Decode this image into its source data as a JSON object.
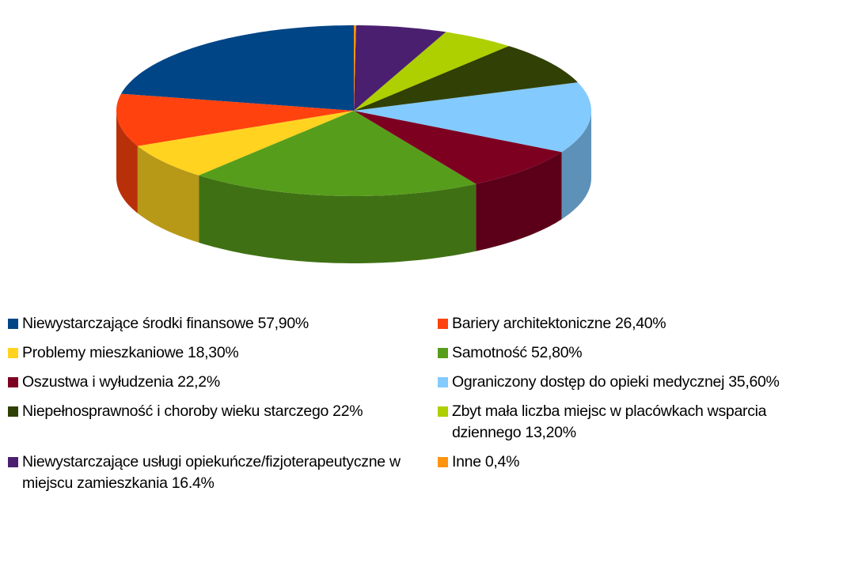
{
  "chart_data": {
    "type": "pie3d",
    "categories": [
      "Niewystarczające środki finansowe 57,90%",
      "Bariery architektoniczne 26,40%",
      "Problemy mieszkaniowe 18,30%",
      "Samotność 52,80%",
      "Oszustwa i wyłudzenia 22,2%",
      "Ograniczony dostęp do opieki medycznej 35,60%",
      "Niepełnosprawność i choroby wieku starczego 22%",
      "Zbyt mała liczba miejsc w placówkach wsparcia dziennego 13,20%",
      "Niewystarczające usługi opiekuńcze/fizjoterapeutyczne w miejscu zamieszkania 16.4%",
      "Inne 0,4%"
    ],
    "values": [
      57.9,
      26.4,
      18.3,
      52.8,
      22.2,
      35.6,
      22,
      13.2,
      16.4,
      0.4
    ],
    "colors": [
      "#004586",
      "#ff420e",
      "#ffd320",
      "#579d1c",
      "#7e0021",
      "#83caff",
      "#314004",
      "#aecf00",
      "#4b1f6f",
      "#ff950e"
    ],
    "legend": "bottom"
  }
}
